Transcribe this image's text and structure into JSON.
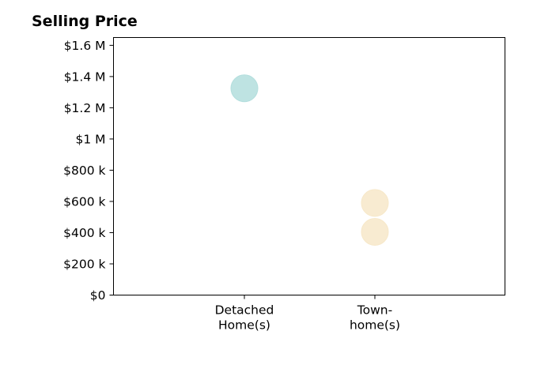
{
  "chart_data": {
    "type": "scatter",
    "title": "Selling Price",
    "xlabel": "",
    "ylabel": "",
    "categories": [
      "Detached\nHome(s)",
      "Town-\nhome(s)"
    ],
    "ylim": [
      0,
      1650000
    ],
    "yticks": [
      0,
      200000,
      400000,
      600000,
      800000,
      1000000,
      1200000,
      1400000,
      1600000
    ],
    "ytick_labels": [
      "$0",
      "$200 k",
      "$400 k",
      "$600 k",
      "$800 k",
      "$1 M",
      "$1.2 M",
      "$1.4 M",
      "$1.6 M"
    ],
    "grid": false,
    "series": [
      {
        "category": "Detached\nHome(s)",
        "values": [
          1325000
        ],
        "color": "#b3dedd"
      },
      {
        "category": "Town-\nhome(s)",
        "values": [
          590000,
          405000
        ],
        "color": "#f7e8c9"
      }
    ]
  }
}
